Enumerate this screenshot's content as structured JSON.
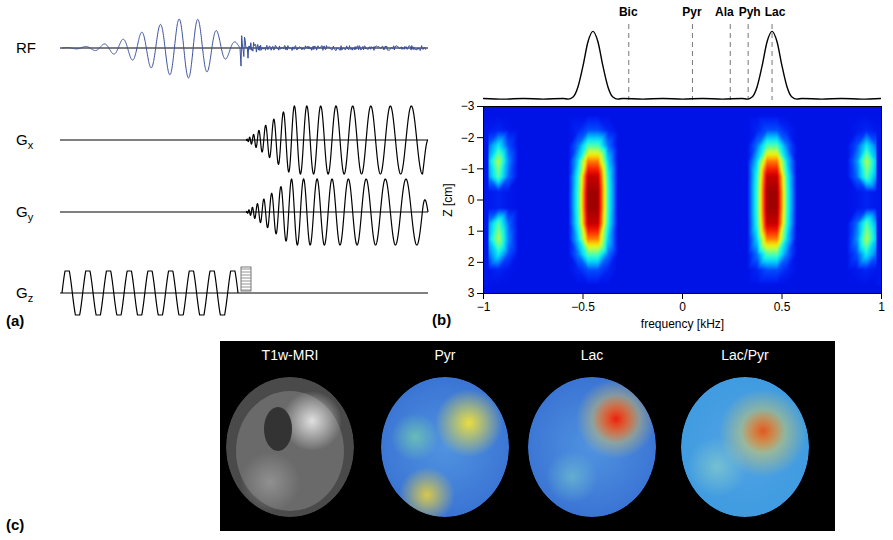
{
  "panel_a": {
    "label": "(a)",
    "rows": [
      {
        "label": "RF"
      },
      {
        "label": "G",
        "subscript": "x"
      },
      {
        "label": "G",
        "subscript": "y"
      },
      {
        "label": "G",
        "subscript": "z"
      }
    ]
  },
  "chart_data": {
    "type": "heatmap",
    "panel_label": "(b)",
    "x_label": "frequency [kHz]",
    "y_label": "Z [cm]",
    "xlim": [
      -1,
      1
    ],
    "xticks": [
      {
        "value": -1,
        "label": "−1"
      },
      {
        "value": -0.5,
        "label": "−0.5"
      },
      0,
      0.5,
      1
    ],
    "ylim": [
      3,
      -3
    ],
    "yticks": [
      {
        "value": -3,
        "label": "−3"
      },
      {
        "value": -2,
        "label": "−2"
      },
      {
        "value": -1,
        "label": "−1"
      },
      0,
      1,
      2,
      3
    ],
    "heatmap": {
      "freq": [
        -0.975,
        -0.925,
        -0.875,
        -0.825,
        -0.775,
        -0.725,
        -0.675,
        -0.625,
        -0.575,
        -0.525,
        -0.475,
        -0.425,
        -0.375,
        -0.325,
        -0.275,
        -0.225,
        -0.175,
        -0.125,
        -0.075,
        -0.025,
        0.025,
        0.075,
        0.125,
        0.175,
        0.225,
        0.275,
        0.325,
        0.375,
        0.425,
        0.475,
        0.525,
        0.575,
        0.625,
        0.675,
        0.725,
        0.775,
        0.825,
        0.875,
        0.925,
        0.975
      ],
      "z": [
        -2.75,
        -2.25,
        -1.75,
        -1.25,
        -0.75,
        -0.25,
        0.25,
        0.75,
        1.25,
        1.75,
        2.25,
        2.75
      ],
      "values": [
        [
          0.12,
          0.12,
          0.12,
          0.12,
          0.12,
          0.12,
          0.12,
          0.12,
          0.12,
          0.12,
          0.12,
          0.12,
          0.12,
          0.12,
          0.12,
          0.12,
          0.12,
          0.12,
          0.12,
          0.12,
          0.12,
          0.12,
          0.12,
          0.12,
          0.12,
          0.12,
          0.12,
          0.12,
          0.12,
          0.12,
          0.12,
          0.12,
          0.12,
          0.12,
          0.12,
          0.12,
          0.12,
          0.12,
          0.12,
          0.12
        ],
        [
          0.13,
          0.15,
          0.13,
          0.12,
          0.12,
          0.12,
          0.12,
          0.12,
          0.12,
          0.15,
          0.2,
          0.2,
          0.15,
          0.12,
          0.12,
          0.12,
          0.12,
          0.12,
          0.12,
          0.12,
          0.12,
          0.12,
          0.12,
          0.12,
          0.12,
          0.12,
          0.12,
          0.15,
          0.2,
          0.2,
          0.15,
          0.12,
          0.12,
          0.12,
          0.12,
          0.12,
          0.12,
          0.13,
          0.15,
          0.13
        ],
        [
          0.23,
          0.37,
          0.2,
          0.12,
          0.12,
          0.12,
          0.12,
          0.12,
          0.12,
          0.24,
          0.45,
          0.45,
          0.24,
          0.12,
          0.12,
          0.12,
          0.12,
          0.12,
          0.12,
          0.12,
          0.12,
          0.12,
          0.12,
          0.12,
          0.12,
          0.12,
          0.12,
          0.24,
          0.45,
          0.45,
          0.24,
          0.12,
          0.12,
          0.12,
          0.12,
          0.12,
          0.12,
          0.2,
          0.37,
          0.23
        ],
        [
          0.31,
          0.55,
          0.26,
          0.12,
          0.12,
          0.12,
          0.12,
          0.12,
          0.12,
          0.34,
          0.75,
          0.75,
          0.34,
          0.12,
          0.12,
          0.12,
          0.12,
          0.12,
          0.12,
          0.12,
          0.12,
          0.12,
          0.12,
          0.12,
          0.12,
          0.12,
          0.12,
          0.34,
          0.75,
          0.75,
          0.34,
          0.12,
          0.12,
          0.12,
          0.12,
          0.12,
          0.12,
          0.26,
          0.55,
          0.31
        ],
        [
          0.27,
          0.46,
          0.23,
          0.12,
          0.12,
          0.12,
          0.12,
          0.12,
          0.12,
          0.41,
          0.95,
          0.95,
          0.41,
          0.12,
          0.12,
          0.12,
          0.12,
          0.12,
          0.12,
          0.12,
          0.12,
          0.12,
          0.12,
          0.12,
          0.12,
          0.12,
          0.12,
          0.41,
          0.95,
          0.95,
          0.41,
          0.12,
          0.12,
          0.12,
          0.12,
          0.12,
          0.12,
          0.23,
          0.46,
          0.27
        ],
        [
          0.13,
          0.15,
          0.13,
          0.12,
          0.12,
          0.12,
          0.12,
          0.12,
          0.12,
          0.43,
          1,
          1,
          0.43,
          0.12,
          0.12,
          0.12,
          0.12,
          0.12,
          0.12,
          0.12,
          0.12,
          0.12,
          0.12,
          0.12,
          0.12,
          0.12,
          0.12,
          0.43,
          1,
          1,
          0.43,
          0.12,
          0.12,
          0.12,
          0.12,
          0.12,
          0.12,
          0.13,
          0.15,
          0.13
        ],
        [
          0.13,
          0.15,
          0.13,
          0.12,
          0.12,
          0.12,
          0.12,
          0.12,
          0.12,
          0.43,
          1,
          1,
          0.43,
          0.12,
          0.12,
          0.12,
          0.12,
          0.12,
          0.12,
          0.12,
          0.12,
          0.12,
          0.12,
          0.12,
          0.12,
          0.12,
          0.12,
          0.43,
          1,
          1,
          0.43,
          0.12,
          0.12,
          0.12,
          0.12,
          0.12,
          0.12,
          0.13,
          0.15,
          0.13
        ],
        [
          0.27,
          0.46,
          0.23,
          0.12,
          0.12,
          0.12,
          0.12,
          0.12,
          0.12,
          0.41,
          0.95,
          0.95,
          0.41,
          0.12,
          0.12,
          0.12,
          0.12,
          0.12,
          0.12,
          0.12,
          0.12,
          0.12,
          0.12,
          0.12,
          0.12,
          0.12,
          0.12,
          0.41,
          0.95,
          0.95,
          0.41,
          0.12,
          0.12,
          0.12,
          0.12,
          0.12,
          0.12,
          0.23,
          0.46,
          0.27
        ],
        [
          0.31,
          0.55,
          0.26,
          0.12,
          0.12,
          0.12,
          0.12,
          0.12,
          0.12,
          0.34,
          0.75,
          0.75,
          0.34,
          0.12,
          0.12,
          0.12,
          0.12,
          0.12,
          0.12,
          0.12,
          0.12,
          0.12,
          0.12,
          0.12,
          0.12,
          0.12,
          0.12,
          0.34,
          0.75,
          0.75,
          0.34,
          0.12,
          0.12,
          0.12,
          0.12,
          0.12,
          0.12,
          0.26,
          0.55,
          0.31
        ],
        [
          0.23,
          0.37,
          0.2,
          0.12,
          0.12,
          0.12,
          0.12,
          0.12,
          0.12,
          0.24,
          0.45,
          0.45,
          0.24,
          0.12,
          0.12,
          0.12,
          0.12,
          0.12,
          0.12,
          0.12,
          0.12,
          0.12,
          0.12,
          0.12,
          0.12,
          0.12,
          0.12,
          0.24,
          0.45,
          0.45,
          0.24,
          0.12,
          0.12,
          0.12,
          0.12,
          0.12,
          0.12,
          0.2,
          0.37,
          0.23
        ],
        [
          0.13,
          0.15,
          0.13,
          0.12,
          0.12,
          0.12,
          0.12,
          0.12,
          0.12,
          0.15,
          0.2,
          0.2,
          0.15,
          0.12,
          0.12,
          0.12,
          0.12,
          0.12,
          0.12,
          0.12,
          0.12,
          0.12,
          0.12,
          0.12,
          0.12,
          0.12,
          0.12,
          0.15,
          0.2,
          0.2,
          0.15,
          0.12,
          0.12,
          0.12,
          0.12,
          0.12,
          0.12,
          0.13,
          0.15,
          0.13
        ],
        [
          0.12,
          0.12,
          0.12,
          0.12,
          0.12,
          0.12,
          0.12,
          0.12,
          0.12,
          0.12,
          0.12,
          0.12,
          0.12,
          0.12,
          0.12,
          0.12,
          0.12,
          0.12,
          0.12,
          0.12,
          0.12,
          0.12,
          0.12,
          0.12,
          0.12,
          0.12,
          0.12,
          0.12,
          0.12,
          0.12,
          0.12,
          0.12,
          0.12,
          0.12,
          0.12,
          0.12,
          0.12,
          0.12,
          0.12,
          0.12
        ]
      ],
      "value_range": [
        0,
        1
      ],
      "colors": [
        "#00007f",
        "#0000ff",
        "#007fff",
        "#00ffff",
        "#7fff7f",
        "#ffff00",
        "#ff7f00",
        "#ff0000",
        "#a00000"
      ]
    },
    "profile": {
      "x": [
        -1,
        -0.9,
        -0.8,
        -0.7,
        -0.6,
        -0.575,
        -0.55,
        -0.525,
        -0.5,
        -0.475,
        -0.45,
        -0.425,
        -0.4,
        -0.375,
        -0.35,
        -0.325,
        -0.3,
        -0.2,
        -0.1,
        0,
        0.1,
        0.2,
        0.3,
        0.325,
        0.35,
        0.375,
        0.4,
        0.425,
        0.45,
        0.475,
        0.5,
        0.525,
        0.55,
        0.575,
        0.6,
        0.7,
        0.8,
        0.9,
        1
      ],
      "values": [
        0.03,
        0.02,
        0.03,
        0.02,
        0.03,
        0.02,
        0.05,
        0.2,
        0.5,
        0.85,
        1,
        0.85,
        0.5,
        0.2,
        0.05,
        0.02,
        0.03,
        0.02,
        0.03,
        0.02,
        0.03,
        0.02,
        0.03,
        0.02,
        0.05,
        0.2,
        0.5,
        0.85,
        1,
        0.85,
        0.5,
        0.2,
        0.05,
        0.02,
        0.03,
        0.02,
        0.03,
        0.02,
        0.03
      ],
      "ylim": [
        0,
        1.1
      ],
      "color": "#000000",
      "tick_labels": false
    },
    "metabolites": {
      "names": [
        "Bic",
        "Pyr",
        "Ala",
        "Pyh",
        "Lac"
      ],
      "values": [
        -0.27,
        0.05,
        0.24,
        0.33,
        0.45
      ],
      "color": "#777777",
      "line_style": "dashed"
    }
  },
  "panel_c": {
    "label": "(c)",
    "images": [
      {
        "label": "T1w-MRI"
      },
      {
        "label": "Pyr"
      },
      {
        "label": "Lac"
      },
      {
        "label": "Lac/Pyr"
      }
    ]
  }
}
